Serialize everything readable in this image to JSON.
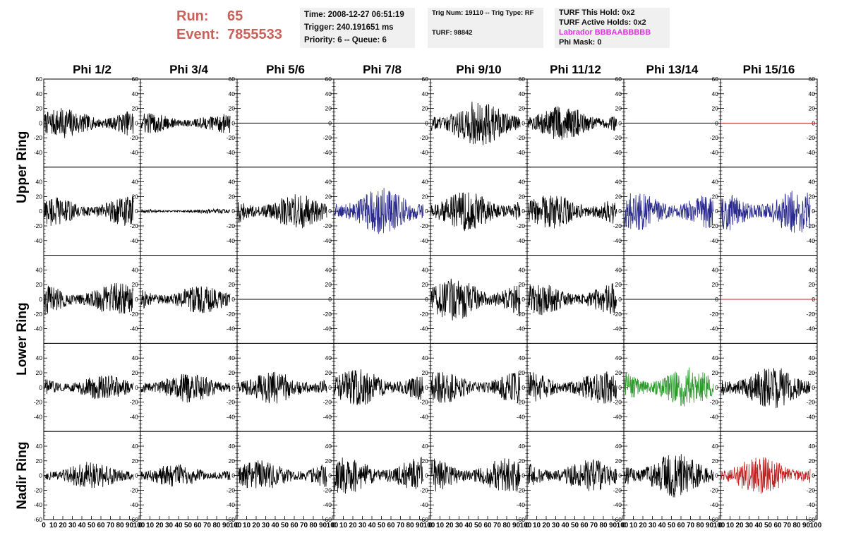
{
  "header": {
    "run_label": "Run:",
    "run_value": "65",
    "event_label": "Event:",
    "event_value": "7855533",
    "info_1": [
      "Time: 2008-12-27 06:51:19",
      "Trigger: 240.191651 ms",
      "Priority: 6 -- Queue: 6"
    ],
    "info_2": [
      "Trig Num: 19110 -- Trig Type: RF",
      "TURF: 98842"
    ],
    "info_3": [
      "TURF This Hold: 0x2",
      "TURF Active Holds: 0x2",
      "Labrador BBBAABBBBB",
      "Phi Mask: 0"
    ]
  },
  "colors": {
    "black": "#000000",
    "blue": "#2a2a8c",
    "red": "#c02020",
    "green": "#2a9a2a",
    "run_text": "#c9605a",
    "labrador_text": "#e030e0",
    "info_bg": "#f0f0f0"
  },
  "chart_data": {
    "type": "line",
    "column_titles": [
      "Phi 1/2",
      "Phi 3/4",
      "Phi 5/6",
      "Phi 7/8",
      "Phi 9/10",
      "Phi 11/12",
      "Phi 13/14",
      "Phi 15/16"
    ],
    "ring_labels": [
      "Upper Ring",
      "Lower Ring",
      "Nadir Ring"
    ],
    "ylim": [
      -60,
      60
    ],
    "y_ticks": [
      -60,
      -40,
      -20,
      0,
      20,
      40,
      60
    ],
    "xlim": [
      0,
      100
    ],
    "x_tick_labels": [
      "0",
      "10",
      "20",
      "30",
      "40",
      "50",
      "60",
      "70",
      "80",
      "90",
      "100"
    ],
    "panels": [
      [
        {
          "color": "black",
          "amp": 13
        },
        {
          "color": "black",
          "amp": 9
        },
        {
          "color": "black",
          "amp": 0
        },
        {
          "color": "black",
          "amp": 0
        },
        {
          "color": "black",
          "amp": 20
        },
        {
          "color": "black",
          "amp": 15
        },
        {
          "color": "black",
          "amp": 0
        },
        {
          "color": "red",
          "amp": 0
        }
      ],
      [
        {
          "color": "black",
          "amp": 13
        },
        {
          "color": "black",
          "amp": 2
        },
        {
          "color": "black",
          "amp": 15
        },
        {
          "color": "blue",
          "amp": 20
        },
        {
          "color": "black",
          "amp": 17
        },
        {
          "color": "black",
          "amp": 15
        },
        {
          "color": "blue",
          "amp": 17
        },
        {
          "color": "blue",
          "amp": 19
        }
      ],
      [
        {
          "color": "black",
          "amp": 14
        },
        {
          "color": "black",
          "amp": 12
        },
        {
          "color": "black",
          "amp": 0
        },
        {
          "color": "black",
          "amp": 0
        },
        {
          "color": "black",
          "amp": 18
        },
        {
          "color": "black",
          "amp": 14
        },
        {
          "color": "black",
          "amp": 0
        },
        {
          "color": "red",
          "amp": 0
        }
      ],
      [
        {
          "color": "black",
          "amp": 11
        },
        {
          "color": "black",
          "amp": 13
        },
        {
          "color": "black",
          "amp": 14
        },
        {
          "color": "black",
          "amp": 16
        },
        {
          "color": "black",
          "amp": 14
        },
        {
          "color": "black",
          "amp": 14
        },
        {
          "color": "green",
          "amp": 17
        },
        {
          "color": "black",
          "amp": 18
        }
      ],
      [
        {
          "color": "black",
          "amp": 12
        },
        {
          "color": "black",
          "amp": 10
        },
        {
          "color": "black",
          "amp": 13
        },
        {
          "color": "black",
          "amp": 16
        },
        {
          "color": "black",
          "amp": 15
        },
        {
          "color": "black",
          "amp": 14
        },
        {
          "color": "black",
          "amp": 19
        },
        {
          "color": "red",
          "amp": 16
        }
      ]
    ]
  }
}
